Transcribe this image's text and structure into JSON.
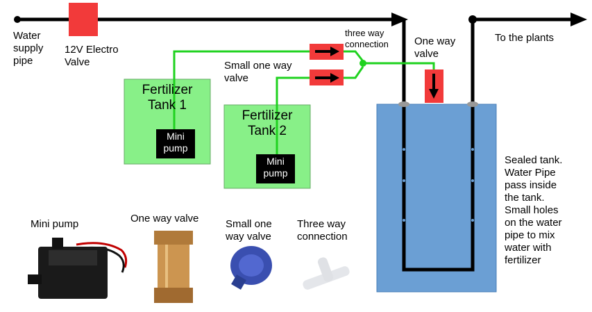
{
  "labels": {
    "water_supply": "Water\nsupply\npipe",
    "electro_valve": "12V Electro\nValve",
    "small_valve": "Small one way\nvalve",
    "three_way": "three way\nconnection",
    "one_way_valve": "One way\nvalve",
    "to_plants": "To the plants",
    "sealed_tank": "Sealed tank.\nWater Pipe\npass inside\nthe tank.\nSmall holes\non the water\npipe to mix\nwater with\nfertilizer"
  },
  "tanks": [
    {
      "title": "Fertilizer\nTank 1",
      "pump": "Mini\npump"
    },
    {
      "title": "Fertilizer\nTank 2",
      "pump": "Mini\npump"
    }
  ],
  "legend": {
    "mini_pump": "Mini pump",
    "one_way_valve": "One way valve",
    "small_valve": "Small one\nway valve",
    "three_way": "Three way\nconnection"
  },
  "colors": {
    "pipe": "#000000",
    "green_line": "#1fd21f",
    "fertilizer_tank": "#88f088",
    "sealed_tank": "#6b9fd4",
    "valve_red": "#f23a3a"
  }
}
